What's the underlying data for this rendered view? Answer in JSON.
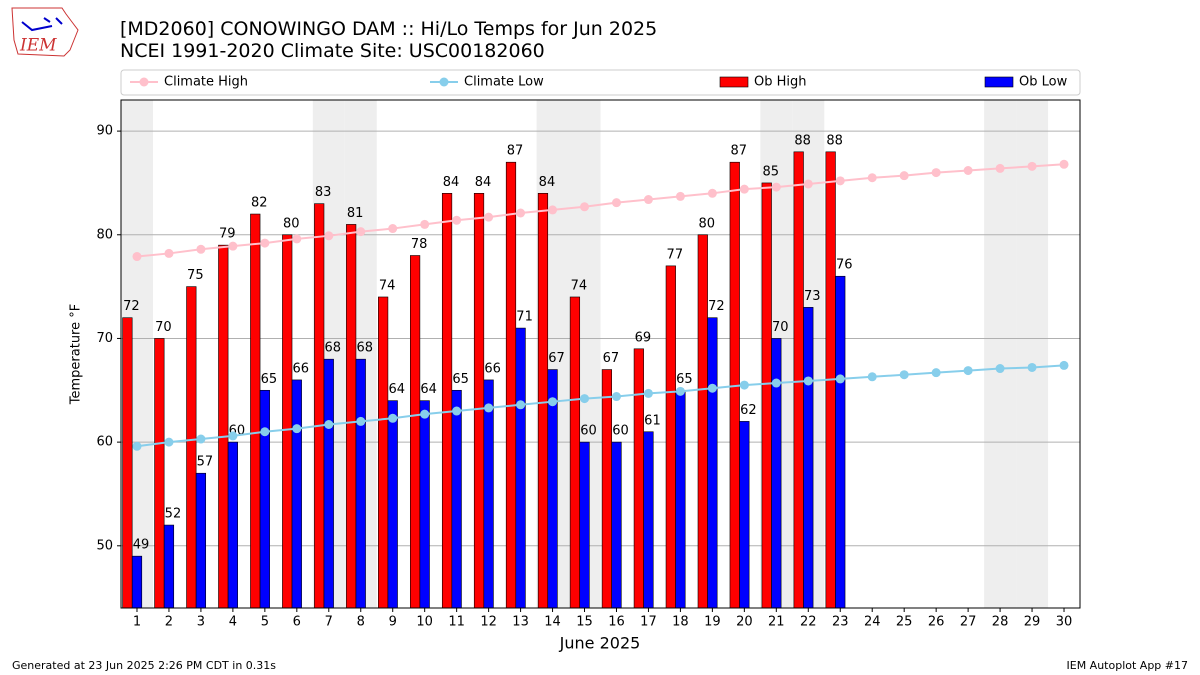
{
  "logo": "IEM",
  "footer_left": "Generated at 23 Jun 2025 2:26 PM CDT in 0.31s",
  "footer_right": "IEM Autoplot App #17",
  "chart_data": {
    "type": "bar",
    "title": "[MD2060] CONOWINGO DAM :: Hi/Lo Temps for Jun 2025",
    "subtitle": "NCEI 1991-2020 Climate Site: USC00182060",
    "x_label": "June 2025",
    "y_label": "Temperature °F",
    "x": [
      1,
      2,
      3,
      4,
      5,
      6,
      7,
      8,
      9,
      10,
      11,
      12,
      13,
      14,
      15,
      16,
      17,
      18,
      19,
      20,
      21,
      22,
      23,
      24,
      25,
      26,
      27,
      28,
      29,
      30
    ],
    "shaded_days": [
      1,
      7,
      8,
      14,
      15,
      21,
      22,
      28,
      29
    ],
    "shade_color": "#eeeeee",
    "series": [
      {
        "name": "Climate High",
        "type": "line",
        "color": "#ffc0cb",
        "values": [
          77.9,
          78.2,
          78.6,
          78.9,
          79.2,
          79.6,
          79.9,
          80.3,
          80.6,
          81.0,
          81.4,
          81.7,
          82.1,
          82.4,
          82.7,
          83.1,
          83.4,
          83.7,
          84.0,
          84.4,
          84.6,
          84.9,
          85.2,
          85.5,
          85.7,
          86.0,
          86.2,
          86.4,
          86.6,
          86.8
        ]
      },
      {
        "name": "Climate Low",
        "type": "line",
        "color": "#87ceeb",
        "values": [
          59.6,
          60.0,
          60.3,
          60.6,
          61.0,
          61.3,
          61.7,
          62.0,
          62.3,
          62.7,
          63.0,
          63.3,
          63.6,
          63.9,
          64.2,
          64.4,
          64.7,
          64.9,
          65.2,
          65.5,
          65.7,
          65.9,
          66.1,
          66.3,
          66.5,
          66.7,
          66.9,
          67.1,
          67.2,
          67.4
        ]
      },
      {
        "name": "Ob High",
        "type": "bar",
        "color": "#ff0000",
        "values": [
          72,
          70,
          75,
          79,
          82,
          80,
          83,
          81,
          74,
          78,
          84,
          84,
          87,
          84,
          74,
          67,
          69,
          77,
          80,
          87,
          85,
          88,
          88,
          null,
          null,
          null,
          null,
          null,
          null,
          null
        ]
      },
      {
        "name": "Ob Low",
        "type": "bar",
        "color": "#0000ff",
        "values": [
          49,
          52,
          57,
          60,
          65,
          66,
          68,
          68,
          64,
          64,
          65,
          66,
          71,
          67,
          60,
          60,
          61,
          65,
          72,
          62,
          70,
          73,
          76,
          null,
          null,
          null,
          null,
          null,
          null,
          null
        ]
      }
    ],
    "xlim": [
      0.5,
      30.5
    ],
    "xticks": [
      1,
      2,
      3,
      4,
      5,
      6,
      7,
      8,
      9,
      10,
      11,
      12,
      13,
      14,
      15,
      16,
      17,
      18,
      19,
      20,
      21,
      22,
      23,
      24,
      25,
      26,
      27,
      28,
      29,
      30
    ],
    "ylim": [
      44,
      93
    ],
    "yticks": [
      50,
      60,
      70,
      80,
      90
    ],
    "grid": true
  }
}
